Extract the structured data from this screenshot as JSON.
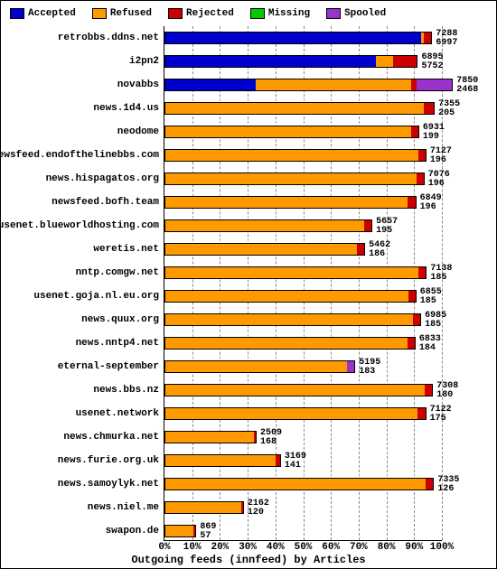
{
  "title": "Outgoing feeds (innfeed) by Articles",
  "legend": [
    {
      "label": "Accepted",
      "color": "#0000cc"
    },
    {
      "label": "Refused",
      "color": "#ff9900"
    },
    {
      "label": "Rejected",
      "color": "#cc0000"
    },
    {
      "label": "Missing",
      "color": "#00cc00"
    },
    {
      "label": "Spooled",
      "color": "#9933cc"
    }
  ],
  "xaxis": {
    "ticks": [
      0,
      10,
      20,
      30,
      40,
      50,
      60,
      70,
      80,
      90,
      100
    ],
    "suffix": "%"
  },
  "max_total": 7850,
  "rows": [
    {
      "label": "retrobbs.ddns.net",
      "v1": 7288,
      "v2": 6997,
      "segs": [
        {
          "c": "#0000cc",
          "p": 93
        },
        {
          "c": "#ff9900",
          "p": 1
        },
        {
          "c": "#cc0000",
          "p": 3
        }
      ]
    },
    {
      "label": "i2pn2",
      "v1": 6895,
      "v2": 5752,
      "segs": [
        {
          "c": "#0000cc",
          "p": 76
        },
        {
          "c": "#ff9900",
          "p": 6
        },
        {
          "c": "#cc0000",
          "p": 9
        }
      ]
    },
    {
      "label": "novabbs",
      "v1": 7850,
      "v2": 2468,
      "segs": [
        {
          "c": "#0000cc",
          "p": 33
        },
        {
          "c": "#ff9900",
          "p": 56
        },
        {
          "c": "#cc0000",
          "p": 2
        },
        {
          "c": "#9933cc",
          "p": 13
        }
      ]
    },
    {
      "label": "news.1d4.us",
      "v1": 7355,
      "v2": 205,
      "segs": [
        {
          "c": "#ff9900",
          "p": 93
        },
        {
          "c": "#cc0000",
          "p": 4
        }
      ]
    },
    {
      "label": "neodome",
      "v1": 6931,
      "v2": 199,
      "segs": [
        {
          "c": "#ff9900",
          "p": 89
        },
        {
          "c": "#cc0000",
          "p": 3
        }
      ]
    },
    {
      "label": "newsfeed.endofthelinebbs.com",
      "v1": 7127,
      "v2": 196,
      "segs": [
        {
          "c": "#ff9900",
          "p": 91
        },
        {
          "c": "#cc0000",
          "p": 3
        }
      ]
    },
    {
      "label": "news.hispagatos.org",
      "v1": 7076,
      "v2": 196,
      "segs": [
        {
          "c": "#ff9900",
          "p": 91
        },
        {
          "c": "#cc0000",
          "p": 3
        }
      ]
    },
    {
      "label": "newsfeed.bofh.team",
      "v1": 6849,
      "v2": 196,
      "segs": [
        {
          "c": "#ff9900",
          "p": 88
        },
        {
          "c": "#cc0000",
          "p": 3
        }
      ]
    },
    {
      "label": "usenet.blueworldhosting.com",
      "v1": 5657,
      "v2": 195,
      "segs": [
        {
          "c": "#ff9900",
          "p": 72
        },
        {
          "c": "#cc0000",
          "p": 3
        }
      ]
    },
    {
      "label": "weretis.net",
      "v1": 5462,
      "v2": 186,
      "segs": [
        {
          "c": "#ff9900",
          "p": 70
        },
        {
          "c": "#cc0000",
          "p": 3
        }
      ]
    },
    {
      "label": "nntp.comgw.net",
      "v1": 7138,
      "v2": 185,
      "segs": [
        {
          "c": "#ff9900",
          "p": 91
        },
        {
          "c": "#cc0000",
          "p": 3
        }
      ]
    },
    {
      "label": "usenet.goja.nl.eu.org",
      "v1": 6855,
      "v2": 185,
      "segs": [
        {
          "c": "#ff9900",
          "p": 88
        },
        {
          "c": "#cc0000",
          "p": 3
        }
      ]
    },
    {
      "label": "news.quux.org",
      "v1": 6985,
      "v2": 185,
      "segs": [
        {
          "c": "#ff9900",
          "p": 89
        },
        {
          "c": "#cc0000",
          "p": 3
        }
      ]
    },
    {
      "label": "news.nntp4.net",
      "v1": 6833,
      "v2": 184,
      "segs": [
        {
          "c": "#ff9900",
          "p": 87
        },
        {
          "c": "#cc0000",
          "p": 3
        }
      ]
    },
    {
      "label": "eternal-september",
      "v1": 5195,
      "v2": 183,
      "segs": [
        {
          "c": "#ff9900",
          "p": 66
        },
        {
          "c": "#9933cc",
          "p": 3
        }
      ]
    },
    {
      "label": "news.bbs.nz",
      "v1": 7308,
      "v2": 180,
      "segs": [
        {
          "c": "#ff9900",
          "p": 93
        },
        {
          "c": "#cc0000",
          "p": 3
        }
      ]
    },
    {
      "label": "usenet.network",
      "v1": 7122,
      "v2": 175,
      "segs": [
        {
          "c": "#ff9900",
          "p": 91
        },
        {
          "c": "#cc0000",
          "p": 3
        }
      ]
    },
    {
      "label": "news.chmurka.net",
      "v1": 2509,
      "v2": 168,
      "segs": [
        {
          "c": "#ff9900",
          "p": 32
        },
        {
          "c": "#cc0000",
          "p": 1
        }
      ]
    },
    {
      "label": "news.furie.org.uk",
      "v1": 3169,
      "v2": 141,
      "segs": [
        {
          "c": "#ff9900",
          "p": 40
        },
        {
          "c": "#cc0000",
          "p": 2
        }
      ]
    },
    {
      "label": "news.samoylyk.net",
      "v1": 7335,
      "v2": 126,
      "segs": [
        {
          "c": "#ff9900",
          "p": 93
        },
        {
          "c": "#cc0000",
          "p": 3
        }
      ]
    },
    {
      "label": "news.niel.me",
      "v1": 2162,
      "v2": 120,
      "segs": [
        {
          "c": "#ff9900",
          "p": 28
        },
        {
          "c": "#cc0000",
          "p": 1
        }
      ]
    },
    {
      "label": "swapon.de",
      "v1": 869,
      "v2": 57,
      "segs": [
        {
          "c": "#ff9900",
          "p": 11
        },
        {
          "c": "#cc0000",
          "p": 1
        }
      ]
    }
  ]
}
